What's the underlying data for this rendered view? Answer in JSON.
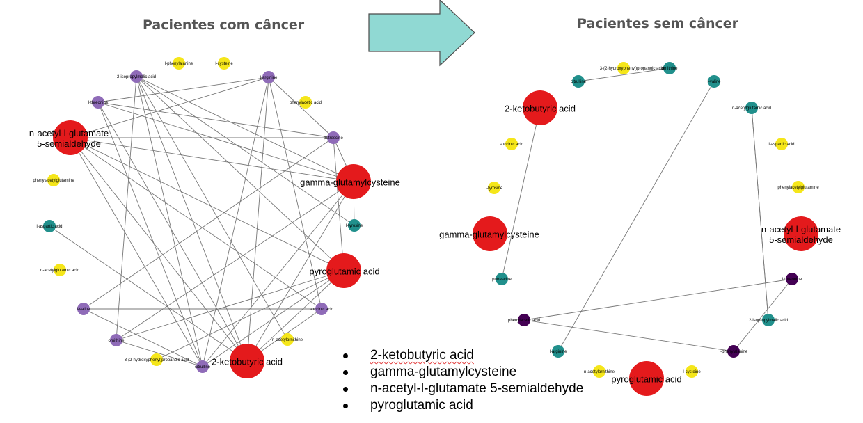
{
  "titles": {
    "left": "Pacientes com câncer",
    "right": "Pacientes sem câncer"
  },
  "colors": {
    "red": "#e41a1c",
    "purple": "#8f6bb8",
    "teal": "#21908c",
    "yellow": "#f5e61a",
    "dark": "#440154",
    "edge": "#777777",
    "arrow_fill": "#90d9d3",
    "arrow_stroke": "#4a4a4a"
  },
  "bullets": [
    "2-ketobutyric acid",
    "gamma-glutamylcysteine",
    "n-acetyl-l-glutamate 5-semialdehyde",
    "pyroglutamic acid"
  ],
  "left_network": {
    "nodes": [
      {
        "label": "l-phenylalanine",
        "group": "yellow"
      },
      {
        "label": "l-cysteine",
        "group": "yellow"
      },
      {
        "label": "2-isopropylmalic acid",
        "group": "purple"
      },
      {
        "label": "l-arginine",
        "group": "purple"
      },
      {
        "label": "l-threonine",
        "group": "purple"
      },
      {
        "label": "phenylacetic acid",
        "group": "yellow"
      },
      {
        "label": "n-acetyl-l-glutamate 5-semialdehyde",
        "group": "red"
      },
      {
        "label": "putrescine",
        "group": "purple"
      },
      {
        "label": "gamma-glutamylcysteine",
        "group": "red"
      },
      {
        "label": "phenylacetylglutamine",
        "group": "yellow"
      },
      {
        "label": "l-tyrosine",
        "group": "teal"
      },
      {
        "label": "l-aspartic acid",
        "group": "teal"
      },
      {
        "label": "pyroglutamic acid",
        "group": "red"
      },
      {
        "label": "n-acetylglutamic acid",
        "group": "yellow"
      },
      {
        "label": "succinic acid",
        "group": "purple"
      },
      {
        "label": "l-valine",
        "group": "purple"
      },
      {
        "label": "n-acetylornithine",
        "group": "yellow"
      },
      {
        "label": "ornithine",
        "group": "purple"
      },
      {
        "label": "3-(2-hydroxyphenyl)propanoic acid",
        "group": "yellow"
      },
      {
        "label": "2-ketobutyric acid",
        "group": "red"
      },
      {
        "label": "citrulline",
        "group": "purple"
      }
    ]
  },
  "right_network": {
    "nodes": [
      {
        "label": "3-(2-hydroxyphenyl)propanoic acid",
        "group": "yellow"
      },
      {
        "label": "ornithine",
        "group": "teal"
      },
      {
        "label": "citrulline",
        "group": "teal"
      },
      {
        "label": "l-valine",
        "group": "teal"
      },
      {
        "label": "2-ketobutyric acid",
        "group": "red"
      },
      {
        "label": "n-acetylglutamic acid",
        "group": "teal"
      },
      {
        "label": "succinic acid",
        "group": "yellow"
      },
      {
        "label": "l-aspartic acid",
        "group": "yellow"
      },
      {
        "label": "l-tyrosine",
        "group": "yellow"
      },
      {
        "label": "phenylacetylglutamine",
        "group": "yellow"
      },
      {
        "label": "gamma-glutamylcysteine",
        "group": "red"
      },
      {
        "label": "n-acetyl-l-glutamate 5-semialdehyde",
        "group": "red"
      },
      {
        "label": "putrescine",
        "group": "teal"
      },
      {
        "label": "l-threonine",
        "group": "dark"
      },
      {
        "label": "phenylacetic acid",
        "group": "dark"
      },
      {
        "label": "2-isopropylmalic acid",
        "group": "teal"
      },
      {
        "label": "l-arginine",
        "group": "teal"
      },
      {
        "label": "l-phenylalanine",
        "group": "dark"
      },
      {
        "label": "n-acetylornithine",
        "group": "yellow"
      },
      {
        "label": "pyroglutamic acid",
        "group": "red"
      },
      {
        "label": "l-cysteine",
        "group": "yellow"
      }
    ]
  }
}
